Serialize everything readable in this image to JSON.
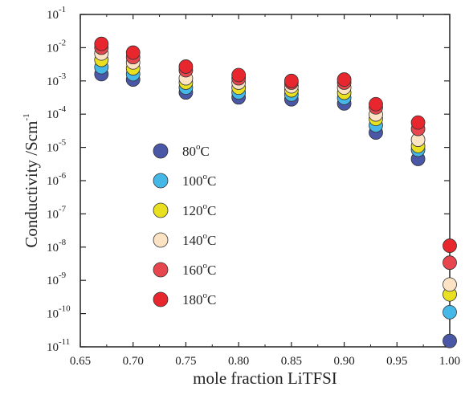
{
  "chart_data": {
    "type": "scatter",
    "xlabel": "mole fraction LiTFSI",
    "ylabel": "Conductivity /Scm",
    "ylabel_superscript": "-1",
    "xlim": [
      0.65,
      1.0
    ],
    "ylim": [
      1e-11,
      0.1
    ],
    "yscale": "log",
    "grid": false,
    "legend_position": "left",
    "x_ticks": [
      "0.65",
      "0.70",
      "0.75",
      "0.80",
      "0.85",
      "0.90",
      "0.95",
      "1.00"
    ],
    "y_ticks": [
      {
        "base": "10",
        "exp": "-11"
      },
      {
        "base": "10",
        "exp": "-10"
      },
      {
        "base": "10",
        "exp": "-9"
      },
      {
        "base": "10",
        "exp": "-8"
      },
      {
        "base": "10",
        "exp": "-7"
      },
      {
        "base": "10",
        "exp": "-6"
      },
      {
        "base": "10",
        "exp": "-5"
      },
      {
        "base": "10",
        "exp": "-4"
      },
      {
        "base": "10",
        "exp": "-3"
      },
      {
        "base": "10",
        "exp": "-2"
      },
      {
        "base": "10",
        "exp": "-1"
      }
    ],
    "x": [
      0.67,
      0.7,
      0.75,
      0.8,
      0.85,
      0.9,
      0.93,
      0.97,
      1.0
    ],
    "series": [
      {
        "name": "80",
        "unit": "C",
        "color": "#4a56a6",
        "values": [
          0.0016,
          0.0011,
          0.00045,
          0.00032,
          0.00028,
          0.00021,
          2.8e-05,
          4.5e-06,
          1.5e-11
        ]
      },
      {
        "name": "100",
        "unit": "C",
        "color": "#45b8e8",
        "values": [
          0.0026,
          0.0016,
          0.00063,
          0.00045,
          0.00039,
          0.00031,
          4.6e-05,
          8.5e-06,
          1.1e-10
        ]
      },
      {
        "name": "120",
        "unit": "C",
        "color": "#e8e020",
        "values": [
          0.0043,
          0.0024,
          0.00089,
          0.00063,
          0.00052,
          0.00044,
          7.2e-05,
          1.1e-05,
          3.8e-10
        ]
      },
      {
        "name": "140",
        "unit": "C",
        "color": "#fbe3c4",
        "values": [
          0.0067,
          0.0036,
          0.0012,
          0.00089,
          0.00069,
          0.00063,
          9.8e-05,
          1.7e-05,
          7.5e-10
        ]
      },
      {
        "name": "160",
        "unit": "C",
        "color": "#e8464e",
        "values": [
          0.01,
          0.0052,
          0.0021,
          0.0012,
          0.00089,
          0.00089,
          0.00016,
          3.6e-05,
          3.4e-09
        ]
      },
      {
        "name": "180",
        "unit": "C",
        "color": "#e8262e",
        "values": [
          0.013,
          0.0071,
          0.0027,
          0.0015,
          0.001,
          0.0011,
          0.0002,
          5.6e-05,
          1.1e-08
        ]
      }
    ]
  }
}
